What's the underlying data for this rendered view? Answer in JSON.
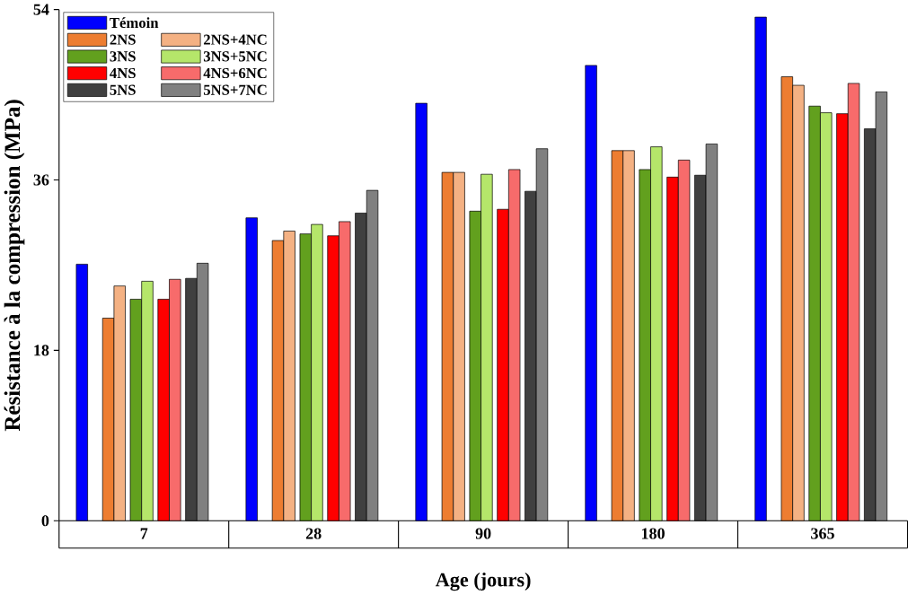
{
  "chart_data": {
    "type": "bar",
    "xlabel": "Age (jours)",
    "ylabel": "Résistance à la compression (MPa)",
    "categories": [
      "7",
      "28",
      "90",
      "180",
      "365"
    ],
    "series": [
      {
        "name": "Témoin",
        "color": "#0000ff",
        "values": [
          27.1,
          32.0,
          44.1,
          48.1,
          53.2
        ]
      },
      {
        "name": "2NS",
        "color": "#ed7d31",
        "values": [
          21.4,
          29.6,
          36.8,
          39.1,
          46.9
        ]
      },
      {
        "name": "2NS+4NC",
        "color": "#f4b183",
        "values": [
          24.8,
          30.6,
          36.8,
          39.1,
          46.0
        ]
      },
      {
        "name": "3NS",
        "color": "#62a01e",
        "values": [
          23.4,
          30.3,
          32.7,
          37.1,
          43.8
        ]
      },
      {
        "name": "3NS+5NC",
        "color": "#b5e66a",
        "values": [
          25.3,
          31.3,
          36.6,
          39.5,
          43.1
        ]
      },
      {
        "name": "4NS",
        "color": "#ff0000",
        "values": [
          23.4,
          30.1,
          32.9,
          36.3,
          43.0
        ]
      },
      {
        "name": "4NS+6NC",
        "color": "#f76b6b",
        "values": [
          25.5,
          31.6,
          37.1,
          38.1,
          46.2
        ]
      },
      {
        "name": "5NS",
        "color": "#404040",
        "values": [
          25.6,
          32.5,
          34.8,
          36.5,
          41.4
        ]
      },
      {
        "name": "5NS+7NC",
        "color": "#808080",
        "values": [
          27.2,
          34.9,
          39.3,
          39.8,
          45.3
        ]
      }
    ],
    "ylim": [
      0,
      54
    ],
    "yticks": [
      0,
      18,
      36,
      54
    ],
    "legend": "top left"
  }
}
